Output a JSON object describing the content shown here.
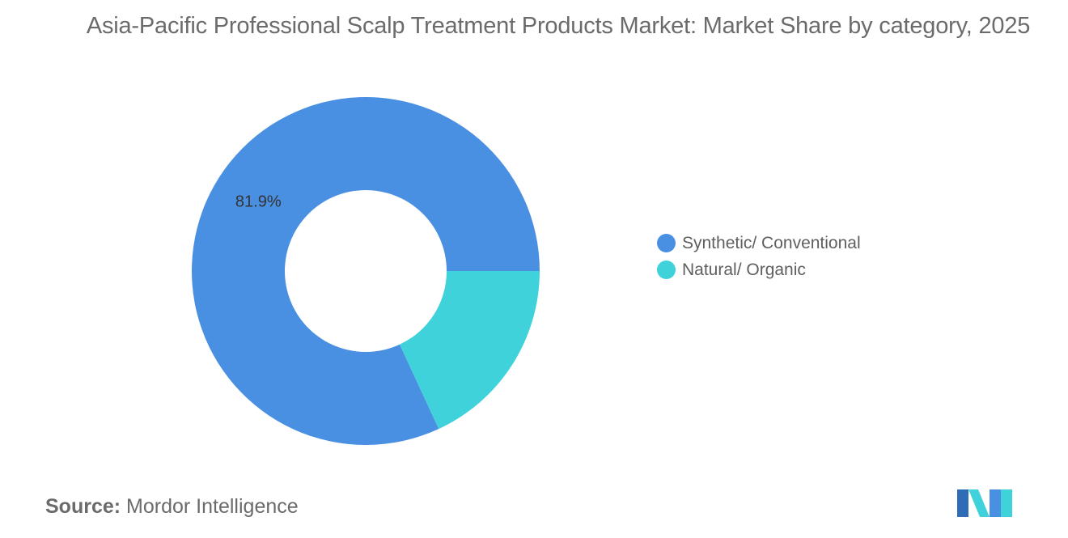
{
  "title": "Asia-Pacific Professional Scalp Treatment Products Market: Market Share by category, 2025",
  "source": {
    "label": "Source:",
    "value": "Mordor Intelligence"
  },
  "chart_data": {
    "type": "pie",
    "variant": "donut",
    "title": "Asia-Pacific Professional Scalp Treatment Products Market: Market Share by category, 2025",
    "unit": "%",
    "series": [
      {
        "name": "Synthetic/ Conventional",
        "value": 81.9,
        "color": "#4a90e2",
        "label": "81.9%"
      },
      {
        "name": "Natural/ Organic",
        "value": 18.1,
        "color": "#40d2da",
        "label": ""
      }
    ],
    "legend_position": "right"
  },
  "logo": {
    "icon": "mordor-intelligence-logo-icon",
    "colors": [
      "#4a90e2",
      "#40d2da",
      "#2e6cb8"
    ]
  }
}
